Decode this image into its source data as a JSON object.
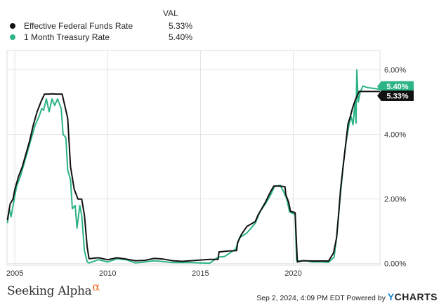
{
  "legend": {
    "header": "VAL",
    "items": [
      {
        "name": "Effective Federal Funds Rate",
        "value": "5.33%",
        "color": "#111111"
      },
      {
        "name": "1 Month Treasury Rate",
        "value": "5.40%",
        "color": "#2cb386"
      }
    ]
  },
  "footer": {
    "logo_text": "Seeking Alpha",
    "logo_symbol": "α",
    "timestamp": "Sep 2, 2024, 4:09 PM EDT Powered by",
    "brand_y": "Y",
    "brand_rest": "CHARTS"
  },
  "chart_data": {
    "type": "line",
    "xlim": [
      2004.58,
      2024.67
    ],
    "ylim": [
      -0.05,
      6.6
    ],
    "x_ticks": [
      2005,
      2010,
      2015,
      2020
    ],
    "x_tick_labels": [
      "2005",
      "2010",
      "2015",
      "2020"
    ],
    "y_ticks": [
      0,
      2,
      4,
      6
    ],
    "y_tick_labels": [
      "0.00%",
      "2.00%",
      "4.00%",
      "6.00%"
    ],
    "grid": true,
    "end_labels": [
      "5.40%",
      "5.33%"
    ],
    "series": [
      {
        "name": "Effective Federal Funds Rate",
        "color": "#111111",
        "points": [
          [
            2004.6,
            1.35
          ],
          [
            2004.75,
            1.85
          ],
          [
            2004.9,
            2.0
          ],
          [
            2005.0,
            2.3
          ],
          [
            2005.2,
            2.7
          ],
          [
            2005.4,
            3.0
          ],
          [
            2005.6,
            3.4
          ],
          [
            2005.8,
            3.8
          ],
          [
            2006.0,
            4.3
          ],
          [
            2006.2,
            4.7
          ],
          [
            2006.4,
            5.0
          ],
          [
            2006.6,
            5.25
          ],
          [
            2006.8,
            5.25
          ],
          [
            2007.0,
            5.26
          ],
          [
            2007.3,
            5.25
          ],
          [
            2007.55,
            5.25
          ],
          [
            2007.65,
            5.0
          ],
          [
            2007.75,
            4.75
          ],
          [
            2007.85,
            4.5
          ],
          [
            2008.0,
            3.0
          ],
          [
            2008.2,
            2.3
          ],
          [
            2008.4,
            2.0
          ],
          [
            2008.6,
            2.0
          ],
          [
            2008.75,
            1.5
          ],
          [
            2008.9,
            0.5
          ],
          [
            2009.0,
            0.15
          ],
          [
            2009.5,
            0.18
          ],
          [
            2010.0,
            0.12
          ],
          [
            2010.5,
            0.18
          ],
          [
            2011.0,
            0.14
          ],
          [
            2011.5,
            0.09
          ],
          [
            2012.0,
            0.1
          ],
          [
            2012.5,
            0.16
          ],
          [
            2013.0,
            0.14
          ],
          [
            2013.5,
            0.09
          ],
          [
            2014.0,
            0.07
          ],
          [
            2014.5,
            0.09
          ],
          [
            2015.0,
            0.11
          ],
          [
            2015.5,
            0.13
          ],
          [
            2015.95,
            0.13
          ],
          [
            2016.0,
            0.36
          ],
          [
            2016.5,
            0.39
          ],
          [
            2016.95,
            0.4
          ],
          [
            2017.0,
            0.65
          ],
          [
            2017.2,
            0.9
          ],
          [
            2017.5,
            1.15
          ],
          [
            2017.95,
            1.3
          ],
          [
            2018.1,
            1.5
          ],
          [
            2018.3,
            1.7
          ],
          [
            2018.5,
            1.9
          ],
          [
            2018.75,
            2.2
          ],
          [
            2018.95,
            2.4
          ],
          [
            2019.3,
            2.4
          ],
          [
            2019.55,
            2.38
          ],
          [
            2019.6,
            2.13
          ],
          [
            2019.75,
            1.9
          ],
          [
            2019.85,
            1.62
          ],
          [
            2020.1,
            1.58
          ],
          [
            2020.17,
            0.65
          ],
          [
            2020.22,
            0.05
          ],
          [
            2020.5,
            0.09
          ],
          [
            2021.0,
            0.08
          ],
          [
            2021.5,
            0.08
          ],
          [
            2021.9,
            0.08
          ],
          [
            2022.17,
            0.33
          ],
          [
            2022.33,
            0.8
          ],
          [
            2022.45,
            1.58
          ],
          [
            2022.55,
            2.33
          ],
          [
            2022.7,
            3.08
          ],
          [
            2022.85,
            3.83
          ],
          [
            2022.95,
            4.33
          ],
          [
            2023.08,
            4.57
          ],
          [
            2023.2,
            4.83
          ],
          [
            2023.35,
            5.08
          ],
          [
            2023.55,
            5.33
          ],
          [
            2024.67,
            5.33
          ]
        ]
      },
      {
        "name": "1 Month Treasury Rate",
        "color": "#2cb386",
        "points": [
          [
            2004.6,
            1.25
          ],
          [
            2004.7,
            1.7
          ],
          [
            2004.8,
            1.45
          ],
          [
            2004.95,
            1.95
          ],
          [
            2005.1,
            2.4
          ],
          [
            2005.3,
            2.7
          ],
          [
            2005.5,
            3.1
          ],
          [
            2005.7,
            3.5
          ],
          [
            2005.9,
            3.9
          ],
          [
            2006.1,
            4.3
          ],
          [
            2006.3,
            4.55
          ],
          [
            2006.45,
            4.8
          ],
          [
            2006.55,
            4.75
          ],
          [
            2006.7,
            5.1
          ],
          [
            2006.85,
            4.7
          ],
          [
            2007.0,
            5.1
          ],
          [
            2007.15,
            4.9
          ],
          [
            2007.3,
            5.1
          ],
          [
            2007.5,
            4.8
          ],
          [
            2007.6,
            4.0
          ],
          [
            2007.75,
            3.9
          ],
          [
            2007.85,
            2.9
          ],
          [
            2008.0,
            2.6
          ],
          [
            2008.1,
            1.7
          ],
          [
            2008.25,
            1.8
          ],
          [
            2008.35,
            1.1
          ],
          [
            2008.5,
            1.8
          ],
          [
            2008.6,
            1.5
          ],
          [
            2008.75,
            0.4
          ],
          [
            2008.9,
            0.05
          ],
          [
            2009.0,
            0.02
          ],
          [
            2009.5,
            0.12
          ],
          [
            2010.0,
            0.05
          ],
          [
            2010.5,
            0.15
          ],
          [
            2011.0,
            0.12
          ],
          [
            2011.5,
            0.02
          ],
          [
            2012.0,
            0.05
          ],
          [
            2012.5,
            0.09
          ],
          [
            2013.0,
            0.06
          ],
          [
            2013.5,
            0.03
          ],
          [
            2014.0,
            0.03
          ],
          [
            2014.5,
            0.03
          ],
          [
            2015.0,
            0.02
          ],
          [
            2015.5,
            0.01
          ],
          [
            2015.95,
            0.2
          ],
          [
            2016.3,
            0.22
          ],
          [
            2016.9,
            0.45
          ],
          [
            2017.1,
            0.8
          ],
          [
            2017.5,
            0.95
          ],
          [
            2017.95,
            1.25
          ],
          [
            2018.2,
            1.6
          ],
          [
            2018.5,
            1.85
          ],
          [
            2018.8,
            2.15
          ],
          [
            2019.0,
            2.4
          ],
          [
            2019.3,
            2.42
          ],
          [
            2019.5,
            2.2
          ],
          [
            2019.65,
            2.0
          ],
          [
            2019.8,
            1.6
          ],
          [
            2020.1,
            1.52
          ],
          [
            2020.18,
            0.1
          ],
          [
            2020.3,
            0.08
          ],
          [
            2020.7,
            0.09
          ],
          [
            2021.0,
            0.05
          ],
          [
            2021.5,
            0.05
          ],
          [
            2021.9,
            0.04
          ],
          [
            2022.2,
            0.2
          ],
          [
            2022.35,
            0.9
          ],
          [
            2022.5,
            1.9
          ],
          [
            2022.6,
            2.5
          ],
          [
            2022.7,
            3.1
          ],
          [
            2022.85,
            3.8
          ],
          [
            2023.0,
            4.3
          ],
          [
            2023.12,
            4.55
          ],
          [
            2023.22,
            4.3
          ],
          [
            2023.32,
            5.0
          ],
          [
            2023.38,
            4.35
          ],
          [
            2023.42,
            6.0
          ],
          [
            2023.5,
            5.0
          ],
          [
            2023.6,
            5.3
          ],
          [
            2023.75,
            5.5
          ],
          [
            2024.0,
            5.45
          ],
          [
            2024.4,
            5.42
          ],
          [
            2024.67,
            5.4
          ]
        ]
      }
    ]
  }
}
